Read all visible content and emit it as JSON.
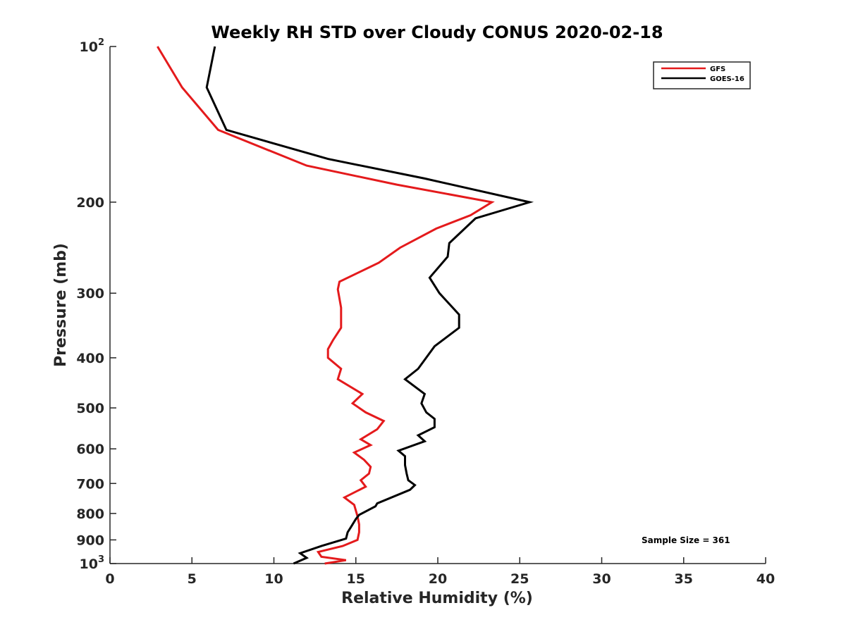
{
  "chart_data": {
    "type": "line",
    "title": "Weekly RH STD over Cloudy CONUS 2020-02-18",
    "xlabel": "Relative Humidity (%)",
    "ylabel": "Pressure (mb)",
    "xlim": [
      0,
      40
    ],
    "ylim": [
      100,
      1000
    ],
    "y_scale": "log",
    "y_reversed": true,
    "x_ticks": [
      0,
      5,
      10,
      15,
      20,
      25,
      30,
      35,
      40
    ],
    "x_tick_labels": [
      "0",
      "5",
      "10",
      "15",
      "20",
      "25",
      "30",
      "35",
      "40"
    ],
    "y_ticks": [
      100,
      200,
      300,
      400,
      500,
      600,
      700,
      800,
      900,
      1000
    ],
    "y_tick_labels": [
      "10|2",
      "200",
      "300",
      "400",
      "500",
      "600",
      "700",
      "800",
      "900",
      "10|3"
    ],
    "grid": false,
    "legend_position": "top-right",
    "annotation": "Sample Size = 361",
    "series": [
      {
        "name": "GFS",
        "color": "#e41a1c",
        "points": [
          [
            2.9,
            100
          ],
          [
            4.4,
            120
          ],
          [
            6.6,
            145
          ],
          [
            12.0,
            170
          ],
          [
            17.5,
            185
          ],
          [
            23.3,
            200
          ],
          [
            22.0,
            212
          ],
          [
            19.9,
            225
          ],
          [
            17.7,
            245
          ],
          [
            16.4,
            262
          ],
          [
            14.0,
            285
          ],
          [
            13.9,
            295
          ],
          [
            14.1,
            320
          ],
          [
            14.1,
            350
          ],
          [
            13.6,
            370
          ],
          [
            13.3,
            385
          ],
          [
            13.3,
            400
          ],
          [
            14.1,
            420
          ],
          [
            13.9,
            440
          ],
          [
            15.4,
            470
          ],
          [
            14.8,
            490
          ],
          [
            15.6,
            510
          ],
          [
            16.7,
            530
          ],
          [
            16.3,
            550
          ],
          [
            15.3,
            575
          ],
          [
            15.9,
            590
          ],
          [
            14.9,
            610
          ],
          [
            15.5,
            630
          ],
          [
            15.9,
            650
          ],
          [
            15.8,
            670
          ],
          [
            15.3,
            690
          ],
          [
            15.6,
            710
          ],
          [
            14.3,
            745
          ],
          [
            14.9,
            770
          ],
          [
            15.0,
            790
          ],
          [
            15.1,
            810
          ],
          [
            15.2,
            840
          ],
          [
            15.2,
            870
          ],
          [
            15.1,
            900
          ],
          [
            14.2,
            925
          ],
          [
            12.7,
            950
          ],
          [
            12.9,
            970
          ],
          [
            14.4,
            985
          ],
          [
            13.1,
            1000
          ]
        ]
      },
      {
        "name": "GOES-16",
        "color": "#000000",
        "points": [
          [
            6.4,
            100
          ],
          [
            5.9,
            120
          ],
          [
            7.1,
            145
          ],
          [
            13.3,
            165
          ],
          [
            19.2,
            180
          ],
          [
            25.6,
            200
          ],
          [
            22.3,
            215
          ],
          [
            20.7,
            240
          ],
          [
            20.6,
            255
          ],
          [
            19.5,
            280
          ],
          [
            20.1,
            300
          ],
          [
            21.3,
            330
          ],
          [
            21.3,
            350
          ],
          [
            19.8,
            380
          ],
          [
            18.8,
            420
          ],
          [
            18.0,
            440
          ],
          [
            19.2,
            470
          ],
          [
            19.0,
            490
          ],
          [
            19.3,
            510
          ],
          [
            19.8,
            525
          ],
          [
            19.8,
            545
          ],
          [
            18.8,
            565
          ],
          [
            19.2,
            580
          ],
          [
            17.6,
            605
          ],
          [
            18.0,
            620
          ],
          [
            18.0,
            645
          ],
          [
            18.1,
            670
          ],
          [
            18.2,
            690
          ],
          [
            18.6,
            705
          ],
          [
            18.3,
            720
          ],
          [
            16.3,
            765
          ],
          [
            16.2,
            775
          ],
          [
            15.2,
            805
          ],
          [
            15.0,
            820
          ],
          [
            14.7,
            850
          ],
          [
            14.5,
            870
          ],
          [
            14.4,
            895
          ],
          [
            12.9,
            925
          ],
          [
            11.6,
            955
          ],
          [
            12.0,
            975
          ],
          [
            11.2,
            1000
          ]
        ]
      }
    ]
  }
}
